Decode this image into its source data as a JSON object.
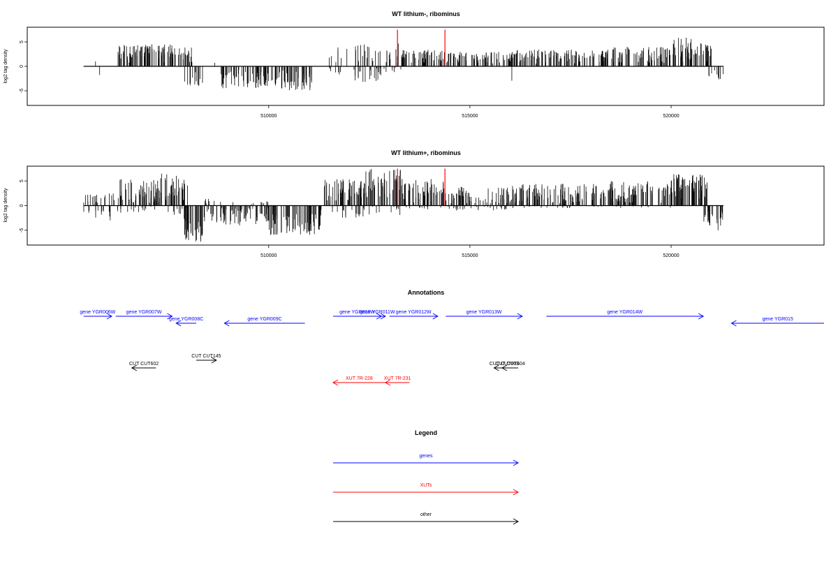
{
  "colors": {
    "gene": "#0000ff",
    "xut": "#ff0000",
    "other": "#000000",
    "marker": "#ff0000"
  },
  "chart_data": [
    {
      "type": "bar",
      "title": "WT lithium-, ribominus",
      "ylabel": "log2 tag density",
      "xlim": [
        504000,
        523800
      ],
      "ylim": [
        -8,
        8
      ],
      "yticks": [
        -5,
        0,
        5
      ],
      "xticks": [
        510000,
        515000,
        520000
      ],
      "xtick_labels": [
        "510000",
        "515000",
        "520000"
      ],
      "baseline_range": [
        505400,
        521300
      ],
      "markers": [
        513200,
        514380
      ],
      "marker_top": 7.5,
      "segments": [
        {
          "start": 505500,
          "end": 505800,
          "min": -2.5,
          "max": 1.5,
          "density": 0.1,
          "kind": "mixed"
        },
        {
          "start": 506200,
          "end": 506700,
          "min": 0,
          "max": 4.5,
          "density": 1.0,
          "kind": "pos"
        },
        {
          "start": 506700,
          "end": 507200,
          "min": 0,
          "max": 4.5,
          "density": 1.0,
          "kind": "pos"
        },
        {
          "start": 507200,
          "end": 507800,
          "min": 0,
          "max": 4.5,
          "density": 0.9,
          "kind": "pos"
        },
        {
          "start": 507800,
          "end": 508100,
          "min": 0,
          "max": 4.0,
          "density": 1.0,
          "kind": "pos"
        },
        {
          "start": 507900,
          "end": 508400,
          "min": -4.0,
          "max": 0,
          "density": 0.5,
          "kind": "neg"
        },
        {
          "start": 508600,
          "end": 508900,
          "min": -1.0,
          "max": 2.5,
          "density": 0.1,
          "kind": "mixed"
        },
        {
          "start": 508800,
          "end": 510200,
          "min": -4.5,
          "max": 0,
          "density": 0.8,
          "kind": "neg"
        },
        {
          "start": 510200,
          "end": 511100,
          "min": -5.0,
          "max": 0,
          "density": 0.9,
          "kind": "neg"
        },
        {
          "start": 511500,
          "end": 512000,
          "min": -2.0,
          "max": 4.0,
          "density": 0.5,
          "kind": "mixed"
        },
        {
          "start": 512000,
          "end": 512800,
          "min": -3.5,
          "max": 4.5,
          "density": 0.8,
          "kind": "mixed"
        },
        {
          "start": 512800,
          "end": 513300,
          "min": -1.5,
          "max": 5.0,
          "density": 0.6,
          "kind": "mixed"
        },
        {
          "start": 513300,
          "end": 514400,
          "min": 0,
          "max": 3.5,
          "density": 0.9,
          "kind": "pos"
        },
        {
          "start": 514400,
          "end": 516100,
          "min": 0,
          "max": 3.0,
          "density": 0.8,
          "kind": "pos"
        },
        {
          "start": 516000,
          "end": 516200,
          "min": -3.0,
          "max": 0,
          "density": 0.1,
          "kind": "neg"
        },
        {
          "start": 516100,
          "end": 518500,
          "min": 0,
          "max": 3.5,
          "density": 0.8,
          "kind": "pos"
        },
        {
          "start": 518500,
          "end": 520000,
          "min": 0,
          "max": 4.0,
          "density": 0.8,
          "kind": "pos"
        },
        {
          "start": 520000,
          "end": 520600,
          "min": 0,
          "max": 6.0,
          "density": 1.0,
          "kind": "pos"
        },
        {
          "start": 520600,
          "end": 521000,
          "min": 0,
          "max": 5.0,
          "density": 1.0,
          "kind": "pos"
        },
        {
          "start": 520900,
          "end": 521300,
          "min": -3.0,
          "max": 0,
          "density": 0.4,
          "kind": "neg"
        }
      ]
    },
    {
      "type": "bar",
      "title": "WT lithium+, ribominus",
      "ylabel": "log2 tag density",
      "xlim": [
        504000,
        523800
      ],
      "ylim": [
        -8,
        8
      ],
      "yticks": [
        -5,
        0,
        5
      ],
      "xticks": [
        510000,
        515000,
        520000
      ],
      "xtick_labels": [
        "510000",
        "515000",
        "520000"
      ],
      "baseline_range": [
        505400,
        521300
      ],
      "markers": [
        513200,
        514380
      ],
      "marker_top": 7.5,
      "segments": [
        {
          "start": 505400,
          "end": 506200,
          "min": -3.0,
          "max": 2.5,
          "density": 0.7,
          "kind": "mixed"
        },
        {
          "start": 506200,
          "end": 507200,
          "min": -1.5,
          "max": 5.5,
          "density": 1.2,
          "kind": "mixed"
        },
        {
          "start": 507200,
          "end": 508000,
          "min": -2.0,
          "max": 6.5,
          "density": 1.2,
          "kind": "mixed"
        },
        {
          "start": 507900,
          "end": 508400,
          "min": -7.5,
          "max": 0,
          "density": 1.2,
          "kind": "neg"
        },
        {
          "start": 508400,
          "end": 508800,
          "min": -4.0,
          "max": 1.5,
          "density": 0.8,
          "kind": "mixed"
        },
        {
          "start": 508800,
          "end": 510000,
          "min": -4.0,
          "max": 1.0,
          "density": 1.0,
          "kind": "mixed"
        },
        {
          "start": 510000,
          "end": 511300,
          "min": -6.0,
          "max": 0,
          "density": 1.0,
          "kind": "neg"
        },
        {
          "start": 511300,
          "end": 512400,
          "min": -2.5,
          "max": 5.5,
          "density": 1.2,
          "kind": "mixed"
        },
        {
          "start": 512400,
          "end": 513300,
          "min": -2.0,
          "max": 7.5,
          "density": 1.2,
          "kind": "mixed"
        },
        {
          "start": 513300,
          "end": 514400,
          "min": -1.0,
          "max": 5.5,
          "density": 1.0,
          "kind": "mixed"
        },
        {
          "start": 514400,
          "end": 516000,
          "min": -1.0,
          "max": 4.0,
          "density": 1.0,
          "kind": "mixed"
        },
        {
          "start": 516000,
          "end": 518500,
          "min": -0.5,
          "max": 4.5,
          "density": 1.0,
          "kind": "mixed"
        },
        {
          "start": 518500,
          "end": 520000,
          "min": -0.5,
          "max": 5.0,
          "density": 1.0,
          "kind": "mixed"
        },
        {
          "start": 520000,
          "end": 520900,
          "min": 0,
          "max": 6.5,
          "density": 1.2,
          "kind": "pos"
        },
        {
          "start": 520800,
          "end": 521300,
          "min": -5.0,
          "max": 0,
          "density": 0.8,
          "kind": "neg"
        }
      ]
    }
  ],
  "annotations": {
    "title": "Annotations",
    "features": [
      {
        "label": "gene YGR006W",
        "start": 505400,
        "end": 506100,
        "strand": "+",
        "color": "blue",
        "row": 1
      },
      {
        "label": "gene YGR007W",
        "start": 506200,
        "end": 507600,
        "strand": "+",
        "color": "blue",
        "row": 1
      },
      {
        "label": "gene YGR008C",
        "start": 507700,
        "end": 508200,
        "strand": "-",
        "color": "blue",
        "row": 2
      },
      {
        "label": "gene YGR009C",
        "start": 508900,
        "end": 510900,
        "strand": "-",
        "color": "blue",
        "row": 2
      },
      {
        "label": "gene YGR010W",
        "start": 511600,
        "end": 512800,
        "strand": "+",
        "color": "blue",
        "row": 1
      },
      {
        "label": "gene YGR011W",
        "start": 512500,
        "end": 512900,
        "strand": "+",
        "color": "blue",
        "row": 1
      },
      {
        "label": "gene YGR012W",
        "start": 513000,
        "end": 514200,
        "strand": "+",
        "color": "blue",
        "row": 1
      },
      {
        "label": "gene YGR013W",
        "start": 514400,
        "end": 516300,
        "strand": "+",
        "color": "blue",
        "row": 1
      },
      {
        "label": "gene YGR014W",
        "start": 516900,
        "end": 520800,
        "strand": "+",
        "color": "blue",
        "row": 1
      },
      {
        "label": "gene YGR015",
        "start": 521500,
        "end": 523800,
        "strand": "-",
        "color": "blue",
        "row": 2
      },
      {
        "label": "CUT CUT602",
        "start": 506600,
        "end": 507200,
        "strand": "-",
        "color": "black",
        "row": 4
      },
      {
        "label": "CUT CUT145",
        "start": 508200,
        "end": 508700,
        "strand": "+",
        "color": "black",
        "row": 3
      },
      {
        "label": "CUT CUT603",
        "start": 515600,
        "end": 516100,
        "strand": "-",
        "color": "black",
        "row": 4
      },
      {
        "label": "CUT CUT604",
        "start": 515800,
        "end": 516200,
        "strand": "-",
        "color": "black",
        "row": 4
      },
      {
        "label": "XUT 7R-228",
        "start": 511600,
        "end": 512900,
        "strand": "-",
        "color": "red",
        "row": 5
      },
      {
        "label": "XUT 7R-231",
        "start": 512900,
        "end": 513500,
        "strand": "-",
        "color": "red",
        "row": 5
      }
    ]
  },
  "legend": {
    "title": "Legend",
    "items": [
      {
        "label": "genes",
        "color": "blue"
      },
      {
        "label": "XUTs",
        "color": "red"
      },
      {
        "label": "other",
        "color": "black"
      }
    ]
  }
}
